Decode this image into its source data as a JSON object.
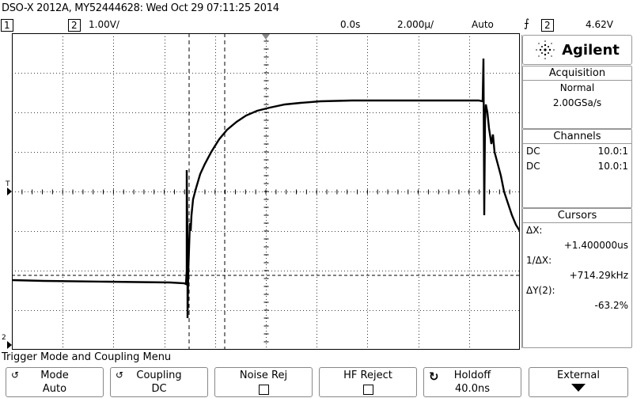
{
  "window": {
    "title": "DSO-X 2012A, MY52444628: Wed Oct 29 07:11:25 2014"
  },
  "status": {
    "ch1_label": "1",
    "ch2_label": "2",
    "ch2_scale": "1.00V/",
    "time_offset": "0.0s",
    "time_scale": "2.000µ/",
    "trigger_mode": "Auto",
    "trigger_icon": "trigger-edge-icon",
    "trigger_source": "2",
    "trigger_level": "4.62V"
  },
  "screen_markers": {
    "trigger_marker": "T",
    "ground_marker": "2"
  },
  "panel": {
    "brand": "Agilent",
    "acquisition": {
      "title": "Acquisition",
      "mode": "Normal",
      "rate": "2.00GSa/s"
    },
    "channels": {
      "title": "Channels",
      "rows": [
        {
          "coupling": "DC",
          "probe": "10.0:1"
        },
        {
          "coupling": "DC",
          "probe": "10.0:1"
        }
      ]
    },
    "cursors": {
      "title": "Cursors",
      "dx_label": "ΔX:",
      "dx_value": "+1.400000us",
      "inv_dx_label": "1/ΔX:",
      "inv_dx_value": "+714.29kHz",
      "dy_label": "ΔY(2):",
      "dy_value": "-63.2%"
    }
  },
  "menu": {
    "title": "Trigger Mode and Coupling Menu",
    "softkeys": [
      {
        "label": "Mode",
        "value": "Auto",
        "has_cycle": true
      },
      {
        "label": "Coupling",
        "value": "DC",
        "has_cycle": true
      },
      {
        "label": "Noise Rej",
        "value": "",
        "checkbox": true
      },
      {
        "label": "HF Reject",
        "value": "",
        "checkbox": true
      },
      {
        "label": "Holdoff",
        "value": "40.0ns",
        "has_cycle": true
      },
      {
        "label": "External",
        "value": "",
        "arrow": true
      }
    ]
  },
  "colors": {
    "trace": "#000000",
    "grid": "#000000",
    "cursor": "#000000"
  }
}
